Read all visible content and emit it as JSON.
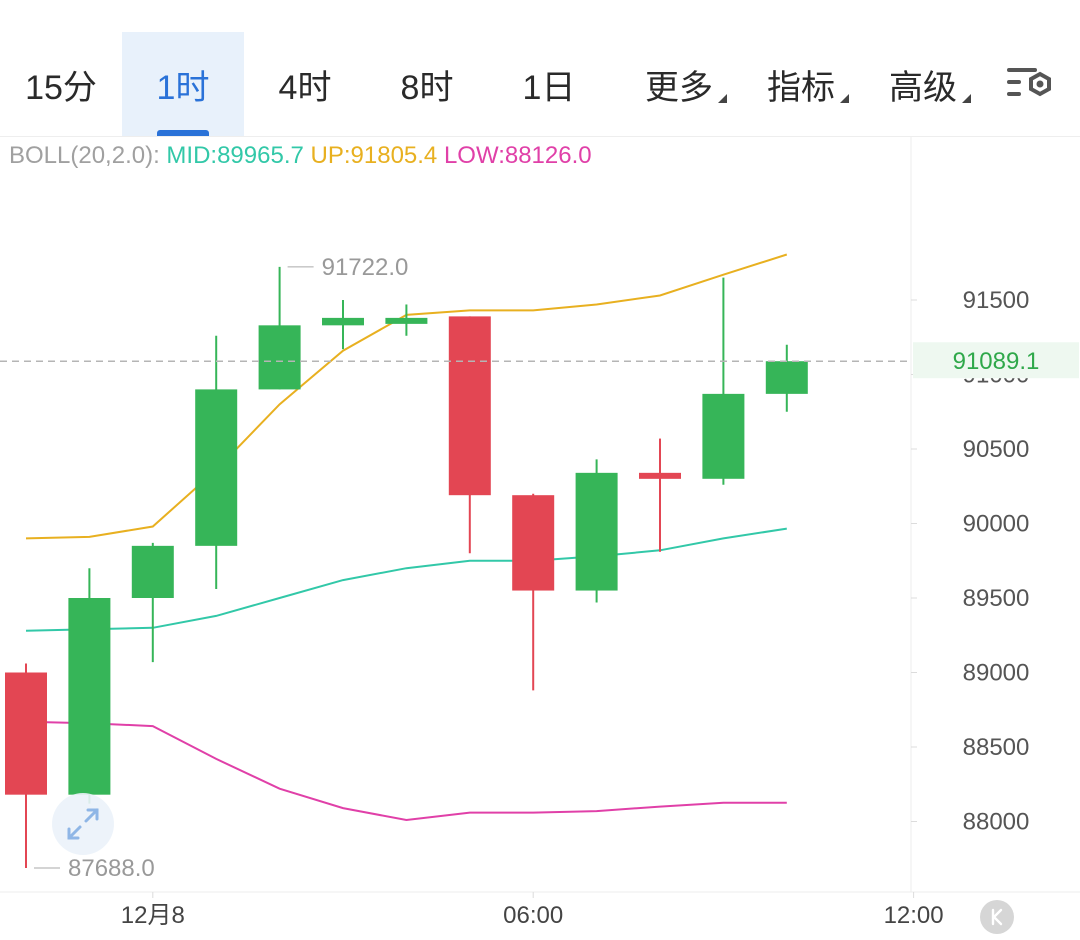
{
  "tabs": [
    {
      "label": "15分",
      "active": false
    },
    {
      "label": "1时",
      "active": true
    },
    {
      "label": "4时",
      "active": false
    },
    {
      "label": "8时",
      "active": false
    },
    {
      "label": "1日",
      "active": false
    },
    {
      "label": "更多",
      "active": false,
      "dropdown": true
    },
    {
      "label": "指标",
      "active": false,
      "dropdown": true
    },
    {
      "label": "高级",
      "active": false,
      "dropdown": true
    }
  ],
  "settings_icon": "chart-settings-icon",
  "boll": {
    "label": "BOLL(20,2.0):",
    "mid": "MID:89965.7",
    "up": "UP:91805.4",
    "low": "LOW:88126.0"
  },
  "colors": {
    "up_candle": "#36b558",
    "down_candle": "#e34653",
    "mid": "#32c8a8",
    "upper": "#e8b020",
    "lower": "#e040a8",
    "accent": "#2a72d8"
  },
  "annotations": {
    "high_label": "91722.0",
    "low_label": "87688.0",
    "current_price": "91089.1"
  },
  "chart_data": {
    "type": "candlestick",
    "ylim": [
      87600,
      92400
    ],
    "yticks": [
      {
        "v": 91500,
        "label": "91500"
      },
      {
        "v": 91000,
        "label": "91000"
      },
      {
        "v": 90500,
        "label": "90500"
      },
      {
        "v": 90000,
        "label": "90000"
      },
      {
        "v": 89500,
        "label": "89500"
      },
      {
        "v": 89000,
        "label": "89000"
      },
      {
        "v": 88500,
        "label": "88500"
      },
      {
        "v": 88000,
        "label": "88000"
      }
    ],
    "xticks": [
      {
        "i": 2,
        "label": "12月8"
      },
      {
        "i": 8,
        "label": "06:00"
      },
      {
        "i": 14,
        "label": "12:00"
      }
    ],
    "candles": [
      {
        "o": 89000,
        "h": 89060,
        "l": 87688,
        "c": 88180
      },
      {
        "o": 88180,
        "h": 89700,
        "l": 88120,
        "c": 89500
      },
      {
        "o": 89500,
        "h": 89870,
        "l": 89070,
        "c": 89850
      },
      {
        "o": 89850,
        "h": 91260,
        "l": 89560,
        "c": 90900
      },
      {
        "o": 90900,
        "h": 91722,
        "l": 90900,
        "c": 91330
      },
      {
        "o": 91330,
        "h": 91500,
        "l": 91170,
        "c": 91380
      },
      {
        "o": 91380,
        "h": 91470,
        "l": 91260,
        "c": 91380
      },
      {
        "o": 91390,
        "h": 91390,
        "l": 89800,
        "c": 90190
      },
      {
        "o": 90190,
        "h": 90200,
        "l": 88880,
        "c": 89550
      },
      {
        "o": 89550,
        "h": 90430,
        "l": 89470,
        "c": 90340
      },
      {
        "o": 90340,
        "h": 90570,
        "l": 89810,
        "c": 90300
      },
      {
        "o": 90300,
        "h": 91650,
        "l": 90260,
        "c": 90870
      },
      {
        "o": 90870,
        "h": 91200,
        "l": 90750,
        "c": 91089.1
      }
    ],
    "boll_mid": [
      89280,
      89290,
      89300,
      89380,
      89500,
      89620,
      89700,
      89750,
      89750,
      89780,
      89820,
      89900,
      89965.7
    ],
    "boll_upper": [
      89900,
      89910,
      89980,
      90360,
      90800,
      91160,
      91400,
      91430,
      91430,
      91470,
      91530,
      91670,
      91805.4
    ],
    "boll_lower": [
      88670,
      88660,
      88640,
      88420,
      88220,
      88090,
      88010,
      88060,
      88060,
      88070,
      88100,
      88126,
      88126.0
    ]
  }
}
